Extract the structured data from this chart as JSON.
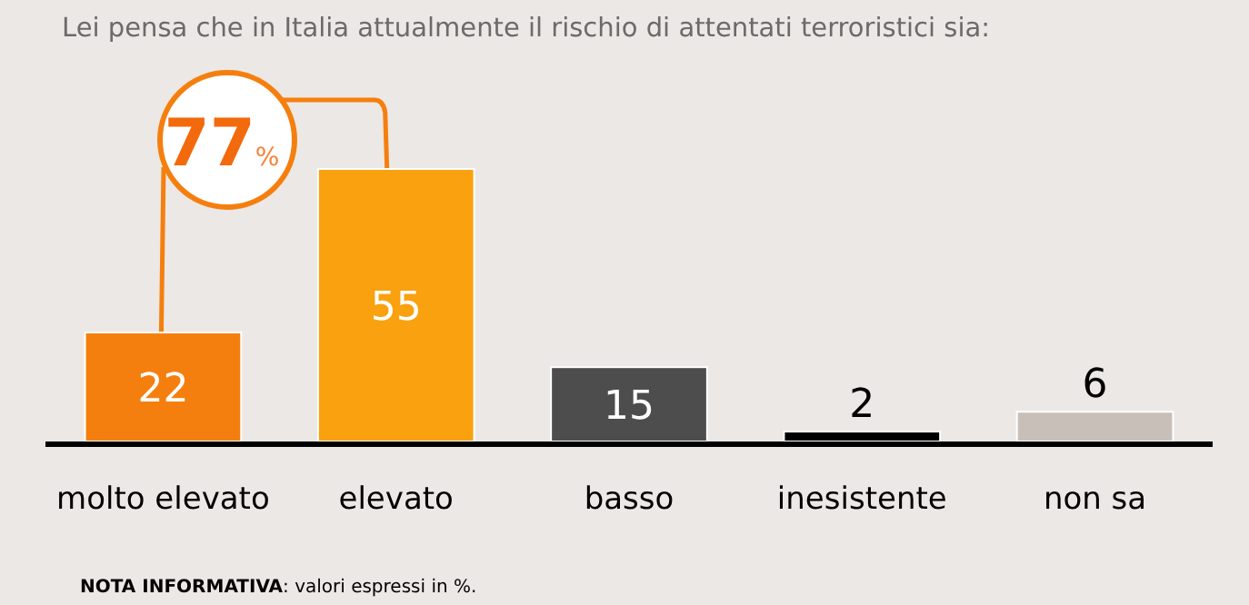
{
  "chart_data": {
    "type": "bar",
    "title": "Lei pensa che in Italia attualmente il rischio di attentati terroristici sia:",
    "categories": [
      "molto elevato",
      "elevato",
      "basso",
      "inesistente",
      "non sa"
    ],
    "values": [
      22,
      55,
      15,
      2,
      6
    ],
    "colors": [
      "#f57f0e",
      "#f9a10e",
      "#4d4d4d",
      "#000000",
      "#c8bfb8"
    ],
    "data_labels": true,
    "annotations": [
      "77%",
      "NOTA INFORMATIVA: valori espressi in %."
    ]
  }
}
